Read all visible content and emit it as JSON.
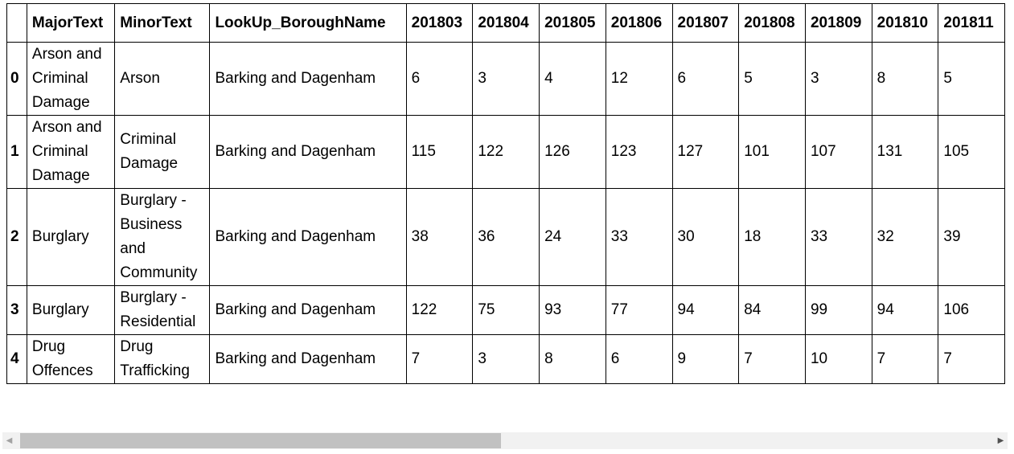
{
  "table": {
    "columns": [
      "MajorText",
      "MinorText",
      "LookUp_BoroughName",
      "201803",
      "201804",
      "201805",
      "201806",
      "201807",
      "201808",
      "201809",
      "201810",
      "201811"
    ],
    "rows": [
      {
        "index": "0",
        "cells": [
          "Arson and Criminal Damage",
          "Arson",
          "Barking and Dagenham",
          "6",
          "3",
          "4",
          "12",
          "6",
          "5",
          "3",
          "8",
          "5"
        ]
      },
      {
        "index": "1",
        "cells": [
          "Arson and Criminal Damage",
          "Criminal Damage",
          "Barking and Dagenham",
          "115",
          "122",
          "126",
          "123",
          "127",
          "101",
          "107",
          "131",
          "105"
        ]
      },
      {
        "index": "2",
        "cells": [
          "Burglary",
          "Burglary - Business and Community",
          "Barking and Dagenham",
          "38",
          "36",
          "24",
          "33",
          "30",
          "18",
          "33",
          "32",
          "39"
        ]
      },
      {
        "index": "3",
        "cells": [
          "Burglary",
          "Burglary - Residential",
          "Barking and Dagenham",
          "122",
          "75",
          "93",
          "77",
          "94",
          "84",
          "99",
          "94",
          "106"
        ]
      },
      {
        "index": "4",
        "cells": [
          "Drug Offences",
          "Drug Trafficking",
          "Barking and Dagenham",
          "7",
          "3",
          "8",
          "6",
          "9",
          "7",
          "10",
          "7",
          "7"
        ]
      }
    ]
  },
  "scrollbar": {
    "left_icon": "scroll-left-arrow-icon",
    "right_icon": "scroll-right-arrow-icon",
    "position_fraction": 0.0
  }
}
